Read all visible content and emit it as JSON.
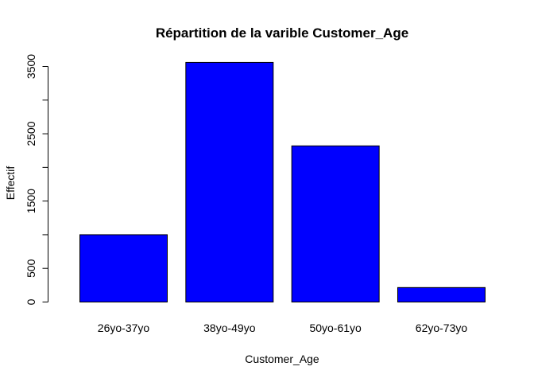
{
  "chart_data": {
    "type": "bar",
    "title": "Répartition de la varible Customer_Age",
    "xlabel": "Customer_Age",
    "ylabel": "Effectif",
    "categories": [
      "26yo-37yo",
      "38yo-49yo",
      "50yo-61yo",
      "62yo-73yo"
    ],
    "values": [
      1000,
      3560,
      2320,
      215
    ],
    "ylim": [
      0,
      3500
    ],
    "yticks": [
      0,
      500,
      1000,
      1500,
      2000,
      2500,
      3000,
      3500
    ],
    "ytick_labels": [
      "0",
      "500",
      "",
      "1500",
      "",
      "2500",
      "",
      "3500"
    ],
    "bar_color": "#0000ff",
    "grid": false,
    "legend": "none"
  }
}
